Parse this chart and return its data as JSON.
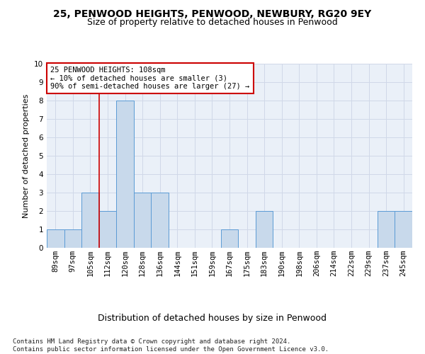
{
  "title": "25, PENWOOD HEIGHTS, PENWOOD, NEWBURY, RG20 9EY",
  "subtitle": "Size of property relative to detached houses in Penwood",
  "xlabel": "Distribution of detached houses by size in Penwood",
  "ylabel": "Number of detached properties",
  "categories": [
    "89sqm",
    "97sqm",
    "105sqm",
    "112sqm",
    "120sqm",
    "128sqm",
    "136sqm",
    "144sqm",
    "151sqm",
    "159sqm",
    "167sqm",
    "175sqm",
    "183sqm",
    "190sqm",
    "198sqm",
    "206sqm",
    "214sqm",
    "222sqm",
    "229sqm",
    "237sqm",
    "245sqm"
  ],
  "values": [
    1,
    1,
    3,
    2,
    8,
    3,
    3,
    0,
    0,
    0,
    1,
    0,
    2,
    0,
    0,
    0,
    0,
    0,
    0,
    2,
    2
  ],
  "bar_color": "#c8d9eb",
  "bar_edge_color": "#5b9bd5",
  "grid_color": "#d0d8e8",
  "annotation_box_text": "25 PENWOOD HEIGHTS: 108sqm\n← 10% of detached houses are smaller (3)\n90% of semi-detached houses are larger (27) →",
  "annotation_box_color": "#ffffff",
  "annotation_box_edge_color": "#cc0000",
  "vline_x_index": 2.5,
  "vline_color": "#cc0000",
  "ylim": [
    0,
    10
  ],
  "yticks": [
    0,
    1,
    2,
    3,
    4,
    5,
    6,
    7,
    8,
    9,
    10
  ],
  "footer_text": "Contains HM Land Registry data © Crown copyright and database right 2024.\nContains public sector information licensed under the Open Government Licence v3.0.",
  "title_fontsize": 10,
  "subtitle_fontsize": 9,
  "xlabel_fontsize": 9,
  "ylabel_fontsize": 8,
  "tick_fontsize": 7.5,
  "annotation_fontsize": 7.5,
  "footer_fontsize": 6.5,
  "bg_color": "#eaf0f8"
}
